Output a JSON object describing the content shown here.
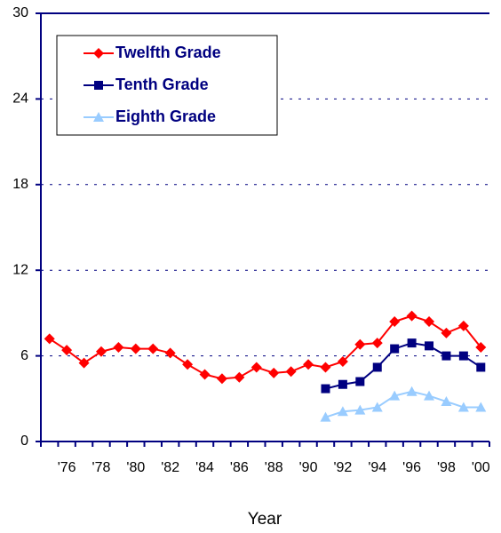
{
  "chart_data": {
    "type": "line",
    "x_label": "Year",
    "categories": [
      null,
      "'76",
      null,
      "'78",
      null,
      "'80",
      null,
      "'82",
      null,
      "'84",
      null,
      "'86",
      null,
      "'88",
      null,
      "'90",
      null,
      "'92",
      null,
      "'94",
      null,
      "'96",
      null,
      "'98",
      null,
      "'00"
    ],
    "series": [
      {
        "name": "Twelfth Grade",
        "color": "#ff0000",
        "marker": "diamond",
        "values": [
          7.2,
          6.4,
          5.5,
          6.3,
          6.6,
          6.5,
          6.5,
          6.2,
          5.4,
          4.7,
          4.4,
          4.5,
          5.2,
          4.8,
          4.9,
          5.4,
          5.2,
          5.6,
          6.8,
          6.9,
          8.4,
          8.8,
          8.4,
          7.6,
          8.1,
          6.6
        ]
      },
      {
        "name": "Tenth Grade",
        "color": "#000080",
        "marker": "square",
        "values": [
          null,
          null,
          null,
          null,
          null,
          null,
          null,
          null,
          null,
          null,
          null,
          null,
          null,
          null,
          null,
          null,
          3.7,
          4.0,
          4.2,
          5.2,
          6.5,
          6.9,
          6.7,
          6.0,
          6.0,
          5.2
        ]
      },
      {
        "name": "Eighth Grade",
        "color": "#99ccff",
        "marker": "triangle",
        "values": [
          null,
          null,
          null,
          null,
          null,
          null,
          null,
          null,
          null,
          null,
          null,
          null,
          null,
          null,
          null,
          null,
          1.7,
          2.1,
          2.2,
          2.4,
          3.2,
          3.5,
          3.2,
          2.8,
          2.4,
          2.4
        ]
      }
    ],
    "ylim": [
      0,
      30
    ],
    "yticks": [
      0,
      6,
      12,
      18,
      24,
      30
    ],
    "grid": true,
    "legend": "top-left"
  }
}
